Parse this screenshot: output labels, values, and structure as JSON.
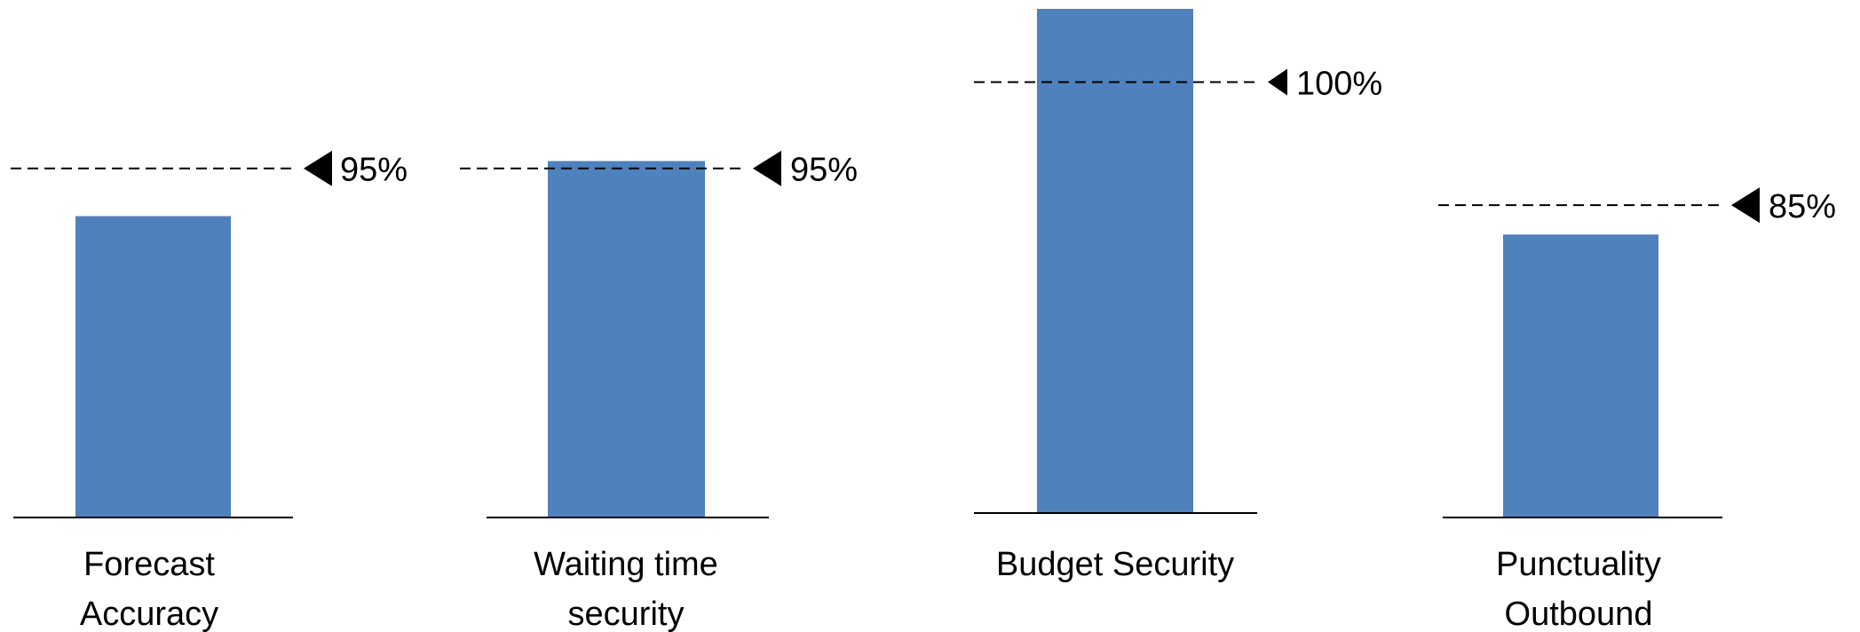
{
  "chart_data": [
    {
      "type": "bar",
      "categories": [
        "Forecast Accuracy"
      ],
      "label_lines": [
        "Forecast",
        "Accuracy"
      ],
      "values": [
        82
      ],
      "target": 95,
      "target_label": "95%",
      "ylim": [
        0,
        100
      ],
      "title": "",
      "xlabel": "",
      "ylabel": ""
    },
    {
      "type": "bar",
      "categories": [
        "Waiting time security"
      ],
      "label_lines": [
        "Waiting time",
        "security"
      ],
      "values": [
        97
      ],
      "target": 95,
      "target_label": "95%",
      "ylim": [
        0,
        100
      ],
      "title": "",
      "xlabel": "",
      "ylabel": ""
    },
    {
      "type": "bar",
      "categories": [
        "Budget Security"
      ],
      "label_lines": [
        "Budget Security"
      ],
      "values": [
        117
      ],
      "target": 100,
      "target_label": "100%",
      "ylim": [
        0,
        117
      ],
      "title": "",
      "xlabel": "",
      "ylabel": ""
    },
    {
      "type": "bar",
      "categories": [
        "Punctuality Outbound"
      ],
      "label_lines": [
        "Punctuality",
        "Outbound"
      ],
      "values": [
        77
      ],
      "target": 85,
      "target_label": "85%",
      "ylim": [
        0,
        100
      ],
      "title": "",
      "xlabel": "",
      "ylabel": ""
    }
  ],
  "colors": {
    "bar": "#4f81bd",
    "axis": "#000000",
    "target_line": "#000000",
    "marker": "#000000"
  }
}
